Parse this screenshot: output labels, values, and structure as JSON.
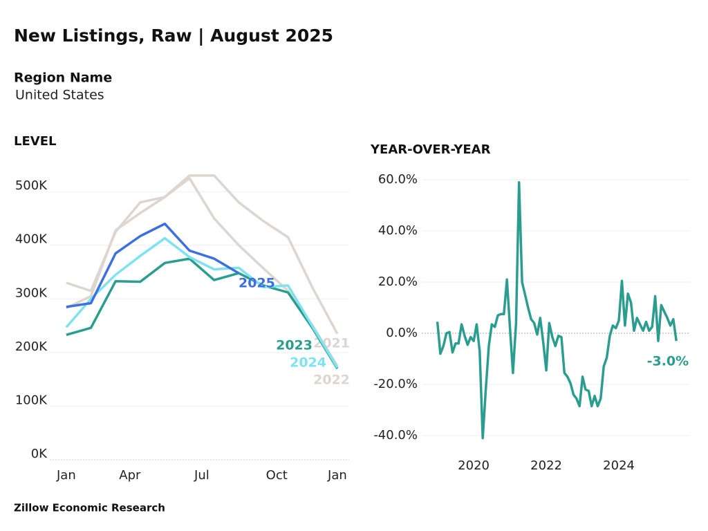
{
  "header": {
    "title": "New Listings, Raw | August 2025",
    "region_label": "Region Name",
    "region_value": "United States"
  },
  "chart_data": [
    {
      "type": "line",
      "title": "LEVEL",
      "x": [
        1,
        2,
        3,
        4,
        5,
        6,
        7,
        8,
        9,
        10,
        11,
        12
      ],
      "xlim": [
        0.33,
        12.48
      ],
      "xticks": [
        {
          "value": 1,
          "label": "Jan"
        },
        {
          "value": 3.58,
          "label": "Apr"
        },
        {
          "value": 6.5,
          "label": "Jul"
        },
        {
          "value": 9.54,
          "label": "Oct"
        },
        {
          "value": 12,
          "label": "Jan"
        }
      ],
      "ylim": [
        0,
        535000
      ],
      "yticks": [
        {
          "value": 0,
          "label": "0K"
        },
        {
          "value": 100000,
          "label": "100K"
        },
        {
          "value": 200000,
          "label": "200K"
        },
        {
          "value": 300000,
          "label": "300K"
        },
        {
          "value": 400000,
          "label": "400K"
        },
        {
          "value": 500000,
          "label": "500K"
        }
      ],
      "grid": true,
      "series": [
        {
          "name": "2021",
          "color": "#ddd5d0",
          "values": [
            330000,
            315000,
            425000,
            480000,
            490000,
            530000,
            530000,
            480000,
            445000,
            415000,
            320000,
            235000
          ]
        },
        {
          "name": "2022",
          "color": "#ddd5d0",
          "values": [
            283000,
            305000,
            428000,
            460000,
            490000,
            525000,
            450000,
            400000,
            357000,
            315000,
            250000,
            175000
          ]
        },
        {
          "name": "2023",
          "color": "#2a9d8f",
          "values": [
            233000,
            246000,
            333000,
            332000,
            367000,
            375000,
            335000,
            348000,
            325000,
            312000,
            245000,
            170000
          ]
        },
        {
          "name": "2024",
          "color": "#7ee3f0",
          "values": [
            247000,
            300000,
            345000,
            380000,
            413000,
            378000,
            355000,
            358000,
            322000,
            325000,
            248000,
            172000
          ]
        },
        {
          "name": "2025",
          "color": "#3d6fe0",
          "values": [
            285000,
            292000,
            385000,
            417000,
            440000,
            390000,
            375000,
            348000,
            null,
            null,
            null,
            null
          ]
        }
      ]
    },
    {
      "type": "line",
      "title": "YEAR-OVER-YEAR",
      "x": [
        2019,
        2019.083,
        2019.167,
        2019.25,
        2019.333,
        2019.417,
        2019.5,
        2019.583,
        2019.667,
        2019.75,
        2019.833,
        2019.917,
        2020,
        2020.083,
        2020.167,
        2020.25,
        2020.333,
        2020.417,
        2020.5,
        2020.583,
        2020.667,
        2020.75,
        2020.833,
        2020.917,
        2021,
        2021.083,
        2021.167,
        2021.25,
        2021.333,
        2021.417,
        2021.5,
        2021.583,
        2021.667,
        2021.75,
        2021.833,
        2021.917,
        2022,
        2022.083,
        2022.167,
        2022.25,
        2022.333,
        2022.417,
        2022.5,
        2022.583,
        2022.667,
        2022.75,
        2022.833,
        2022.917,
        2023,
        2023.083,
        2023.167,
        2023.25,
        2023.333,
        2023.417,
        2023.5,
        2023.583,
        2023.667,
        2023.75,
        2023.833,
        2023.917,
        2024,
        2024.083,
        2024.167,
        2024.25,
        2024.333,
        2024.417,
        2024.5,
        2024.583,
        2024.667,
        2024.75,
        2024.833,
        2024.917,
        2025,
        2025.083,
        2025.167,
        2025.25,
        2025.333,
        2025.417,
        2025.5,
        2025.583
      ],
      "xlim": [
        2018.57,
        2025.96
      ],
      "xticks": [
        2020,
        2022,
        2024
      ],
      "ylim": [
        -45.4,
        62.7
      ],
      "yticks": [
        {
          "value": 60,
          "label": "60.0%"
        },
        {
          "value": 40,
          "label": "40.0%"
        },
        {
          "value": 20,
          "label": "20.0%"
        },
        {
          "value": 0,
          "label": "0.0%"
        },
        {
          "value": -20,
          "label": "-20.0%"
        },
        {
          "value": -40,
          "label": "-40.0%"
        }
      ],
      "grid": true,
      "series": [
        {
          "color": "#2a9d8f",
          "values": [
            4.5,
            -8,
            -5,
            0,
            0.5,
            -7.5,
            -4,
            -4,
            3.5,
            -1,
            -4.5,
            -1.5,
            -3,
            3.5,
            -7,
            -41,
            -22,
            -5,
            3.5,
            2.5,
            7,
            7.5,
            7.5,
            21,
            2,
            -15.5,
            4,
            59,
            20,
            15,
            10,
            5.5,
            4,
            -0.5,
            6,
            -3.5,
            -14.5,
            4,
            -1.5,
            -5,
            -1,
            -1.5,
            -15.5,
            -17,
            -19.5,
            -24,
            -25.5,
            -28.5,
            -17,
            -22,
            -22.5,
            -28.5,
            -24.5,
            -28.5,
            -25.5,
            -13,
            -9.5,
            -1,
            3,
            2,
            5,
            20.5,
            3,
            15.5,
            12,
            1,
            6,
            3.5,
            1,
            4.5,
            1,
            2.5,
            14.5,
            -3,
            11,
            8.5,
            6,
            3,
            5.5,
            -3.0
          ],
          "value_labels": {
            "79": "-3.0%"
          }
        }
      ]
    }
  ],
  "footer": "Zillow Economic Research"
}
